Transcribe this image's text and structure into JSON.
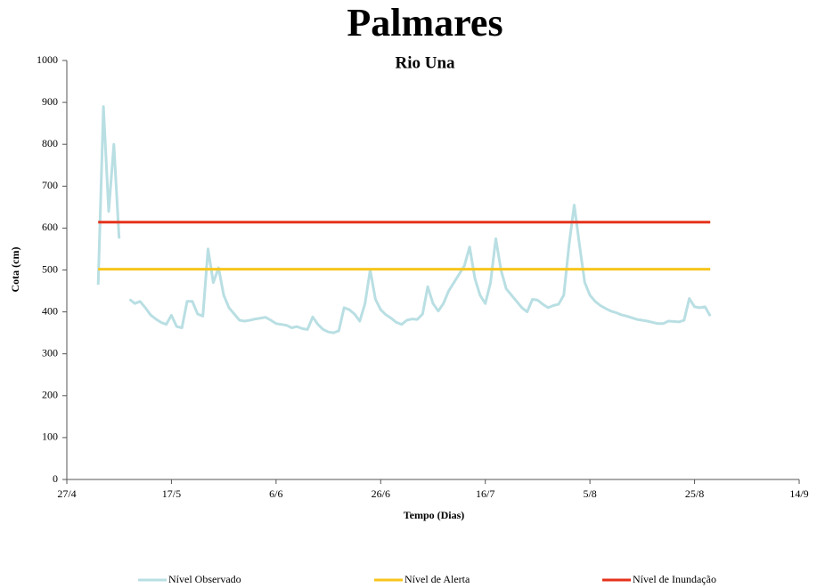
{
  "chart_data": {
    "type": "line",
    "title": "Palmares",
    "subtitle": "Rio Una",
    "x_label": "Tempo (Dias)",
    "y_label": "Cota (cm)",
    "xlim": [
      "27/4",
      "14/9"
    ],
    "xticks": [
      "27/4",
      "17/5",
      "6/6",
      "26/6",
      "16/7",
      "5/8",
      "25/8",
      "14/9"
    ],
    "ylim": [
      0,
      1000
    ],
    "yticks": [
      0,
      100,
      200,
      300,
      400,
      500,
      600,
      700,
      800,
      900,
      1000
    ],
    "grid": false,
    "legend": "bottom",
    "series": [
      {
        "name": "Nível Observado",
        "color": "#b9dfe3",
        "x": [
          "3/5",
          "4/5",
          "5/5",
          "6/5",
          "7/5",
          "8/5",
          "9/5",
          "10/5",
          "11/5",
          "12/5",
          "13/5",
          "14/5",
          "15/5",
          "16/5",
          "17/5",
          "18/5",
          "19/5",
          "20/5",
          "21/5",
          "22/5",
          "23/5",
          "24/5",
          "25/5",
          "26/5",
          "27/5",
          "28/5",
          "29/5",
          "30/5",
          "31/5",
          "1/6",
          "2/6",
          "3/6",
          "4/6",
          "5/6",
          "6/6",
          "7/6",
          "8/6",
          "9/6",
          "10/6",
          "11/6",
          "12/6",
          "13/6",
          "14/6",
          "15/6",
          "16/6",
          "17/6",
          "18/6",
          "19/6",
          "20/6",
          "21/6",
          "22/6",
          "23/6",
          "24/6",
          "25/6",
          "26/6",
          "27/6",
          "28/6",
          "29/6",
          "30/6",
          "1/7",
          "2/7",
          "3/7",
          "4/7",
          "5/7",
          "6/7",
          "7/7",
          "8/7",
          "9/7",
          "10/7",
          "11/7",
          "12/7",
          "13/7",
          "14/7",
          "15/7",
          "16/7",
          "17/7",
          "18/7",
          "19/7",
          "20/7",
          "21/7",
          "22/7",
          "23/7",
          "24/7",
          "25/7",
          "26/7",
          "27/7",
          "28/7",
          "29/7",
          "30/7",
          "31/7",
          "1/8",
          "2/8",
          "3/8",
          "4/8",
          "5/8",
          "6/8",
          "7/8",
          "8/8",
          "9/8",
          "10/8",
          "11/8",
          "12/8",
          "13/8",
          "14/8",
          "15/8",
          "16/8",
          "17/8",
          "18/8",
          "19/8",
          "20/8",
          "21/8",
          "22/8",
          "23/8",
          "24/8",
          "25/8",
          "26/8",
          "27/8",
          "28/8"
        ],
        "values": [
          465,
          890,
          640,
          800,
          575,
          null,
          430,
          420,
          425,
          410,
          393,
          383,
          375,
          370,
          392,
          365,
          362,
          425,
          425,
          395,
          390,
          550,
          470,
          505,
          440,
          410,
          395,
          380,
          378,
          380,
          383,
          385,
          387,
          380,
          372,
          370,
          368,
          362,
          365,
          360,
          358,
          388,
          370,
          358,
          352,
          350,
          355,
          410,
          405,
          395,
          378,
          420,
          500,
          430,
          405,
          393,
          385,
          375,
          370,
          380,
          383,
          382,
          395,
          460,
          420,
          402,
          420,
          450,
          470,
          490,
          510,
          555,
          480,
          440,
          420,
          470,
          575,
          500,
          455,
          440,
          425,
          410,
          400,
          430,
          428,
          418,
          410,
          415,
          418,
          440,
          560,
          655,
          560,
          470,
          440,
          425,
          415,
          408,
          402,
          398,
          393,
          390,
          386,
          382,
          380,
          378,
          375,
          372,
          372,
          378,
          377,
          376,
          380,
          432,
          412,
          410,
          412,
          390
        ]
      },
      {
        "name": "Nível de Alerta",
        "color": "#f7c51b",
        "x": [
          "3/5",
          "28/8"
        ],
        "values": [
          502,
          502
        ]
      },
      {
        "name": "Nível de Inundação",
        "color": "#e5321b",
        "x": [
          "3/5",
          "28/8"
        ],
        "values": [
          614,
          614
        ]
      }
    ]
  }
}
